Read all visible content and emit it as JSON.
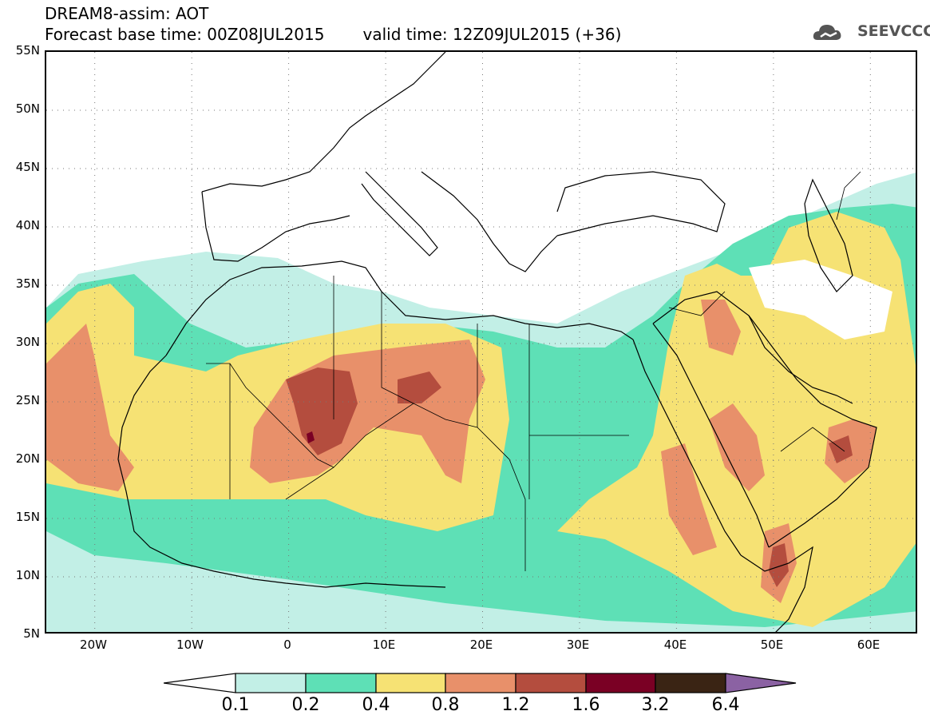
{
  "header": {
    "title": "DREAM8-assim: AOT",
    "base_time": "Forecast base time: 00Z08JUL2015",
    "valid_time": "valid time: 12Z09JUL2015 (+36)"
  },
  "logo": {
    "text": "SEEVCCC",
    "icon": "cloud-icon"
  },
  "map": {
    "lon_range": [
      -25,
      65
    ],
    "lat_range": [
      5,
      55
    ],
    "y_ticks": [
      {
        "lat": 55,
        "label": "55N"
      },
      {
        "lat": 50,
        "label": "50N"
      },
      {
        "lat": 45,
        "label": "45N"
      },
      {
        "lat": 40,
        "label": "40N"
      },
      {
        "lat": 35,
        "label": "35N"
      },
      {
        "lat": 30,
        "label": "30N"
      },
      {
        "lat": 25,
        "label": "25N"
      },
      {
        "lat": 20,
        "label": "20N"
      },
      {
        "lat": 15,
        "label": "15N"
      },
      {
        "lat": 10,
        "label": "10N"
      },
      {
        "lat": 5,
        "label": "5N"
      }
    ],
    "x_ticks": [
      {
        "lon": -20,
        "label": "20W"
      },
      {
        "lon": -10,
        "label": "10W"
      },
      {
        "lon": 0,
        "label": "0"
      },
      {
        "lon": 10,
        "label": "10E"
      },
      {
        "lon": 20,
        "label": "20E"
      },
      {
        "lon": 30,
        "label": "30E"
      },
      {
        "lon": 40,
        "label": "40E"
      },
      {
        "lon": 50,
        "label": "50E"
      },
      {
        "lon": 60,
        "label": "60E"
      }
    ],
    "grid": "dotted"
  },
  "legend": {
    "levels": [
      "0.1",
      "0.2",
      "0.4",
      "0.8",
      "1.2",
      "1.6",
      "3.2",
      "6.4"
    ],
    "colors": [
      "#ffffff",
      "#c2efe6",
      "#5ee0b6",
      "#f6e274",
      "#e8906a",
      "#b44d3e",
      "#7a0024",
      "#3a2414",
      "#8b62a3"
    ]
  }
}
